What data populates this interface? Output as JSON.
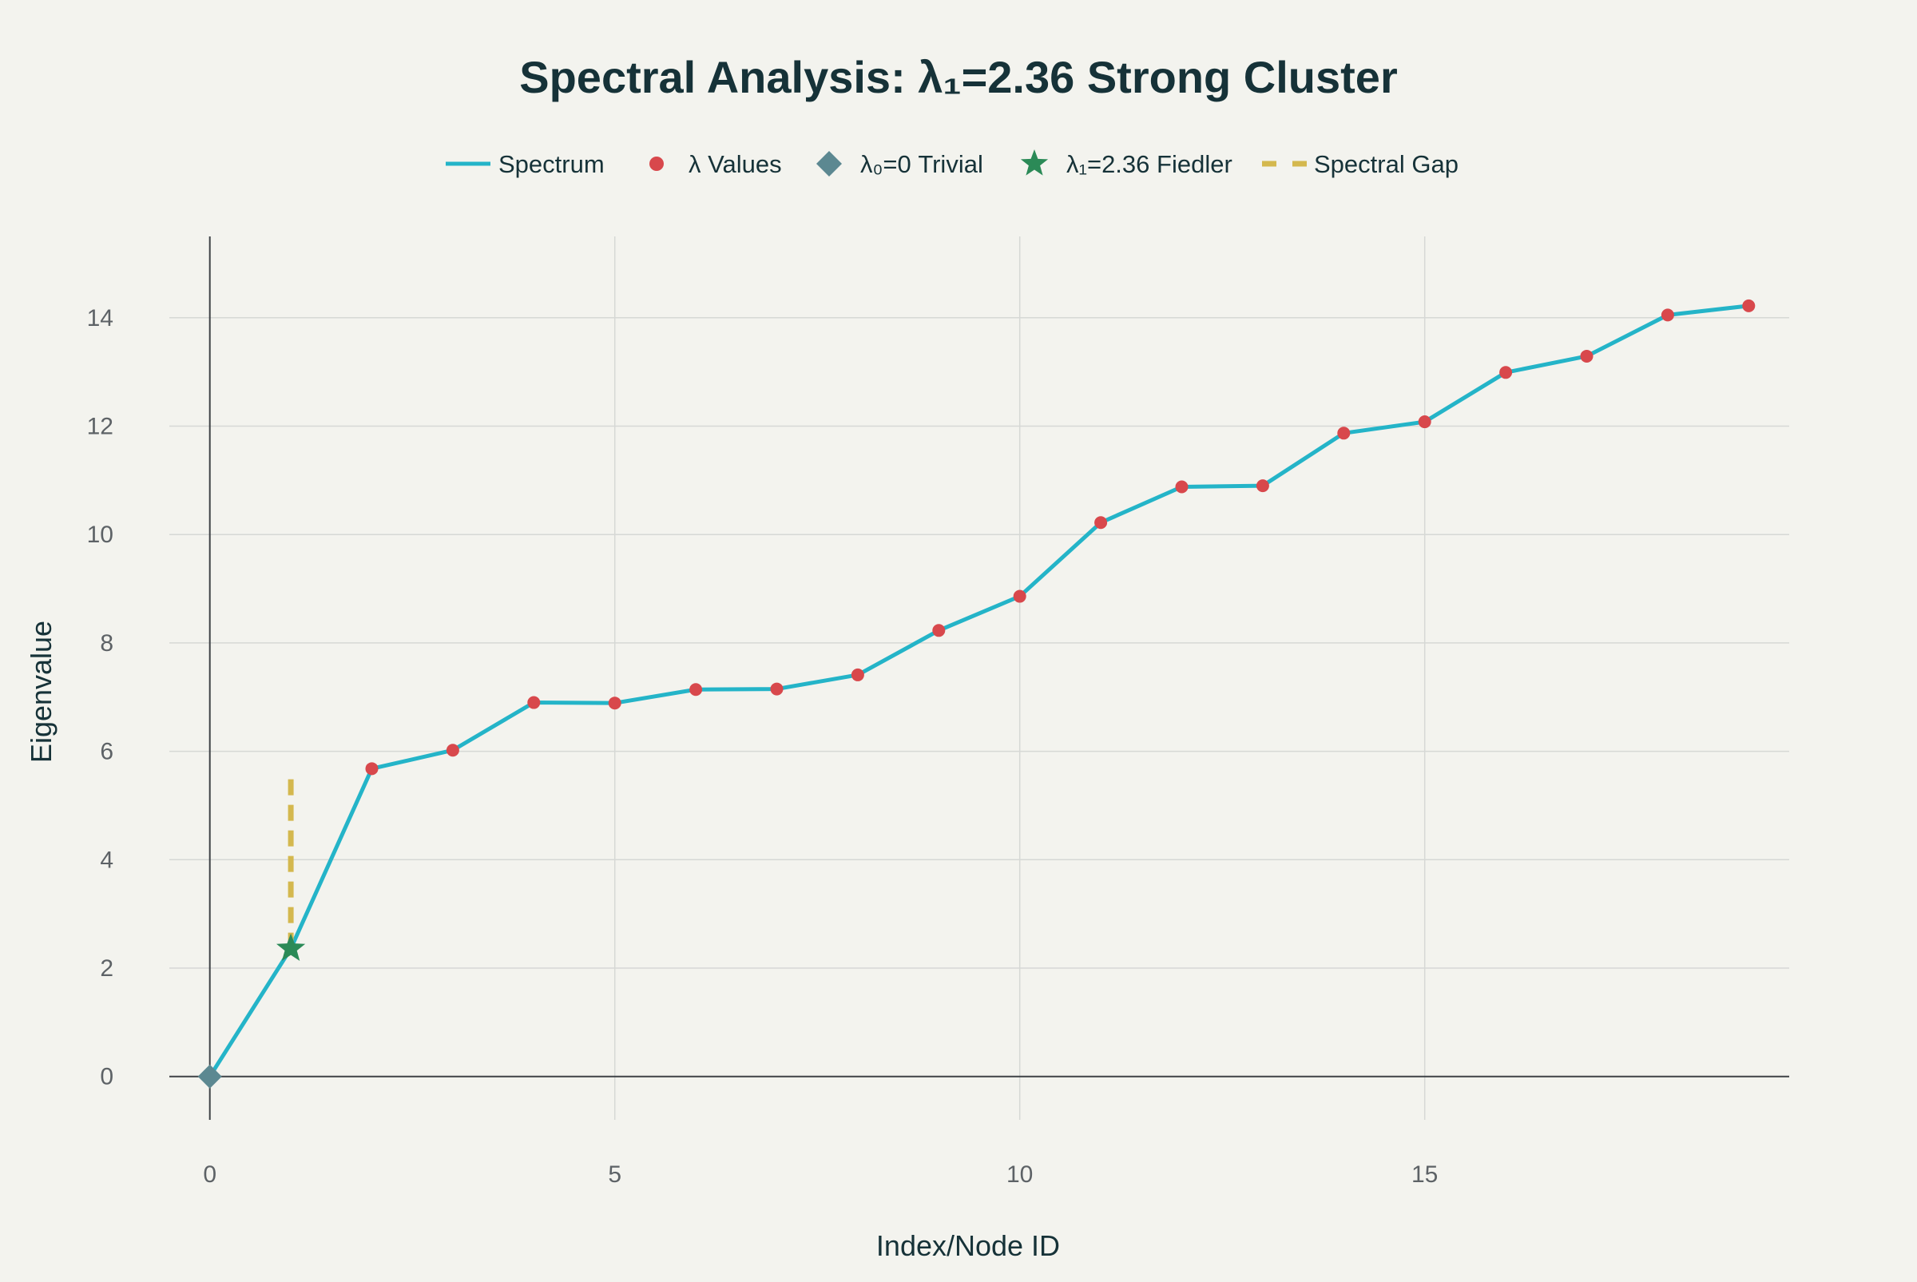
{
  "chart_data": {
    "type": "line",
    "title": "Spectral Analysis: λ₁=2.36 Strong Cluster",
    "xlabel": "Index/Node ID",
    "ylabel": "Eigenvalue",
    "xlim": [
      -0.5,
      19.5
    ],
    "ylim": [
      -0.8,
      15.5
    ],
    "x_ticks": [
      0,
      5,
      10,
      15
    ],
    "y_ticks": [
      0,
      2,
      4,
      6,
      8,
      10,
      12,
      14
    ],
    "grid": true,
    "legend_position": "top-center",
    "x": [
      0,
      1,
      2,
      3,
      4,
      5,
      6,
      7,
      8,
      9,
      10,
      11,
      12,
      13,
      14,
      15,
      16,
      17,
      18,
      19
    ],
    "series": [
      {
        "name": "Spectrum",
        "kind": "line",
        "color": "#24b4c8",
        "values": [
          0,
          2.36,
          5.68,
          6.02,
          6.9,
          6.89,
          7.14,
          7.15,
          7.41,
          8.23,
          8.86,
          10.22,
          10.88,
          10.9,
          11.87,
          12.08,
          12.99,
          13.29,
          14.05,
          14.22
        ]
      },
      {
        "name": "λ Values",
        "kind": "points",
        "color": "#d8484c",
        "x": [
          2,
          3,
          4,
          5,
          6,
          7,
          8,
          9,
          10,
          11,
          12,
          13,
          14,
          15,
          16,
          17,
          18,
          19
        ],
        "values": [
          5.68,
          6.02,
          6.9,
          6.89,
          7.14,
          7.15,
          7.41,
          8.23,
          8.86,
          10.22,
          10.88,
          10.9,
          11.87,
          12.08,
          12.99,
          13.29,
          14.05,
          14.22
        ]
      },
      {
        "name": "λ₀=0 Trivial",
        "kind": "diamond",
        "color": "#5c8891",
        "x": [
          0
        ],
        "values": [
          0
        ]
      },
      {
        "name": "λ₁=2.36 Fiedler",
        "kind": "star",
        "color": "#2b8a57",
        "x": [
          1
        ],
        "values": [
          2.36
        ]
      },
      {
        "name": "Spectral Gap",
        "kind": "dashed",
        "color": "#d4b84e",
        "x": [
          1,
          1
        ],
        "values": [
          2.36,
          5.5
        ]
      }
    ],
    "colors": {
      "grid": "#d6d8d5",
      "axis": "#3e4246",
      "background": "#f3f3ee"
    }
  }
}
